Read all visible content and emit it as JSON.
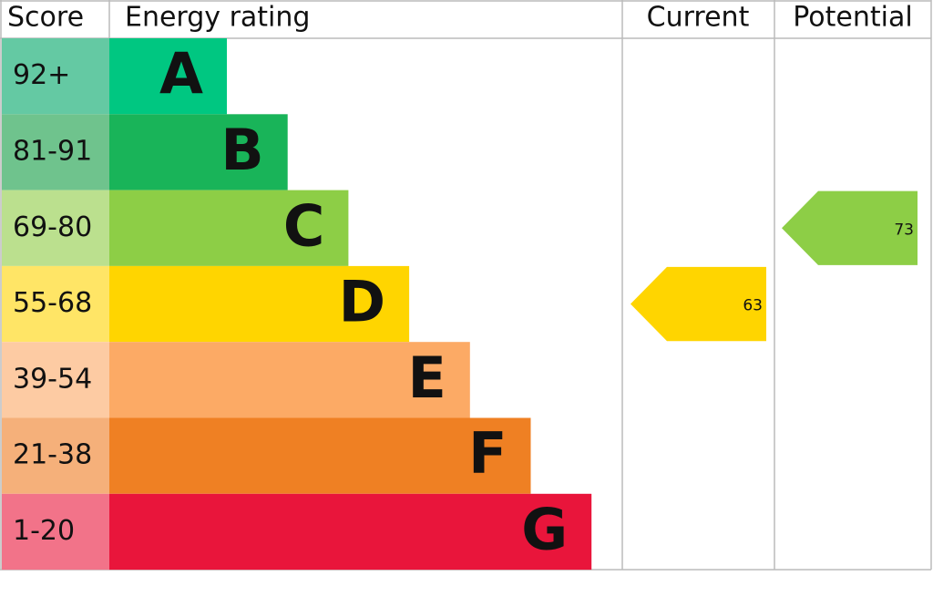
{
  "header": {
    "score": "Score",
    "rating": "Energy rating",
    "current": "Current",
    "potential": "Potential"
  },
  "bands": [
    {
      "score": "92+",
      "letter": "A",
      "color": "#00c781",
      "light": "#64c9a3"
    },
    {
      "score": "81-91",
      "letter": "B",
      "color": "#19b459",
      "light": "#6fc38d"
    },
    {
      "score": "69-80",
      "letter": "C",
      "color": "#8dce46",
      "light": "#bbe08e"
    },
    {
      "score": "55-68",
      "letter": "D",
      "color": "#ffd500",
      "light": "#ffe566"
    },
    {
      "score": "39-54",
      "letter": "E",
      "color": "#fcaa65",
      "light": "#fdcba3"
    },
    {
      "score": "21-38",
      "letter": "F",
      "color": "#ef8023",
      "light": "#f5b07a"
    },
    {
      "score": "1-20",
      "letter": "G",
      "color": "#e9153b",
      "light": "#f27389"
    }
  ],
  "current": {
    "value": 63
  },
  "potential": {
    "value": 73
  }
}
